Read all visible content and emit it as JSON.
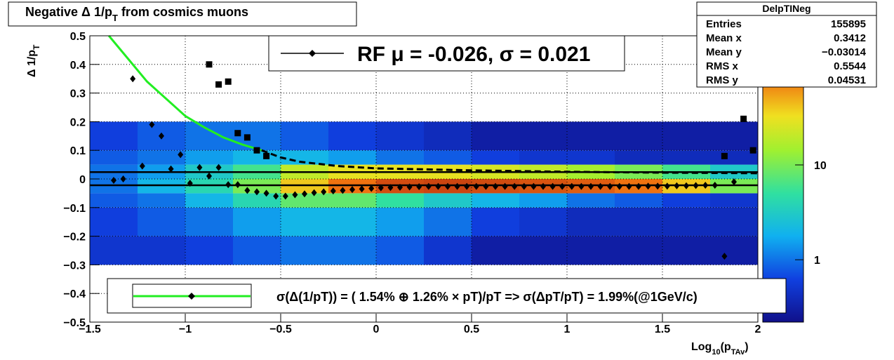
{
  "chart_data": {
    "type": "hist2d",
    "title": [
      "Negative Δ 1/p",
      "T",
      " from cosmics muons"
    ],
    "ylabel": [
      "Δ 1/p",
      "T"
    ],
    "xlabel": [
      "Log",
      "10",
      "(p",
      "TAv",
      ")"
    ],
    "xlim": [
      -1.5,
      2
    ],
    "ylim": [
      -0.5,
      0.5
    ],
    "xticks": [
      {
        "value": -1.5,
        "label": "−1.5"
      },
      {
        "value": -1,
        "label": "−1"
      },
      {
        "value": -0.5,
        "label": "−0.5"
      },
      0,
      0.5,
      1,
      1.5,
      2
    ],
    "yticks": [
      {
        "value": -0.5,
        "label": "−0.5"
      },
      {
        "value": -0.4,
        "label": "−0.4"
      },
      {
        "value": -0.3,
        "label": "−0.3"
      },
      {
        "value": -0.2,
        "label": "−0.2"
      },
      {
        "value": -0.1,
        "label": "−0.1"
      },
      0,
      0.1,
      0.2,
      0.3,
      0.4,
      0.5
    ],
    "grid": true,
    "zlim": [
      0.22,
      230
    ],
    "zticks": [
      1,
      10
    ],
    "zlog": true,
    "heatmap": {
      "xbins": [
        -1.5,
        -1.25,
        -1,
        -0.75,
        -0.5,
        -0.25,
        0,
        0.25,
        0.5,
        0.75,
        1,
        1.25,
        1.5,
        1.75,
        2
      ],
      "ybins": [
        -0.3,
        -0.2,
        -0.1,
        -0.05,
        0,
        0.05,
        0.1,
        0.2
      ],
      "z": [
        [
          0.5,
          0.5,
          0.6,
          0.8,
          1,
          1,
          0.8,
          0.5,
          0.3,
          0.3,
          0.3,
          0.3,
          0.3,
          0.3
        ],
        [
          0.6,
          0.8,
          1,
          1.5,
          2,
          2,
          1.5,
          1,
          0.6,
          0.5,
          0.4,
          0.4,
          0.4,
          0.4
        ],
        [
          0.8,
          1,
          2,
          4,
          8,
          8,
          5,
          3,
          2,
          1.5,
          1,
          0.8,
          0.6,
          0.5
        ],
        [
          1,
          2,
          4,
          10,
          40,
          80,
          120,
          130,
          120,
          110,
          100,
          80,
          40,
          10
        ],
        [
          1,
          1.5,
          3,
          6,
          20,
          30,
          30,
          30,
          25,
          20,
          15,
          10,
          6,
          3
        ],
        [
          0.8,
          1,
          1.5,
          2,
          2,
          1.5,
          1,
          0.8,
          0.6,
          0.5,
          0.5,
          0.4,
          0.4,
          0.4
        ],
        [
          0.6,
          0.8,
          1,
          1,
          0.8,
          0.6,
          0.5,
          0.4,
          0.3,
          0.3,
          0.3,
          0.3,
          0.3,
          0.3
        ]
      ]
    },
    "hlines": [
      0.024,
      -0.022
    ],
    "series": [
      {
        "name": "mean",
        "marker": "diamond",
        "color": "#000000",
        "x": [
          -1.375,
          -1.325,
          -1.275,
          -1.225,
          -1.175,
          -1.125,
          -1.075,
          -1.025,
          -0.975,
          -0.925,
          -0.875,
          -0.825,
          -0.775,
          -0.725,
          -0.675,
          -0.625,
          -0.575,
          -0.525,
          -0.475,
          -0.425,
          -0.375,
          -0.325,
          -0.275,
          -0.225,
          -0.175,
          -0.125,
          -0.075,
          -0.025,
          0.025,
          0.075,
          0.125,
          0.175,
          0.225,
          0.275,
          0.325,
          0.375,
          0.425,
          0.475,
          0.525,
          0.575,
          0.625,
          0.675,
          0.725,
          0.775,
          0.825,
          0.875,
          0.925,
          0.975,
          1.025,
          1.075,
          1.125,
          1.175,
          1.225,
          1.275,
          1.325,
          1.375,
          1.425,
          1.475,
          1.525,
          1.575,
          1.625,
          1.675,
          1.725,
          1.775,
          1.825,
          1.875
        ],
        "values": [
          -0.005,
          0,
          0.35,
          0.045,
          0.19,
          0.15,
          0.035,
          0.085,
          -0.015,
          0.04,
          0.01,
          0.04,
          -0.02,
          -0.02,
          -0.04,
          -0.045,
          -0.05,
          -0.06,
          -0.06,
          -0.055,
          -0.052,
          -0.048,
          -0.045,
          -0.042,
          -0.04,
          -0.037,
          -0.035,
          -0.033,
          -0.031,
          -0.03,
          -0.029,
          -0.028,
          -0.027,
          -0.026,
          -0.026,
          -0.026,
          -0.026,
          -0.026,
          -0.026,
          -0.026,
          -0.026,
          -0.026,
          -0.026,
          -0.026,
          -0.026,
          -0.026,
          -0.026,
          -0.026,
          -0.026,
          -0.026,
          -0.026,
          -0.026,
          -0.026,
          -0.026,
          -0.026,
          -0.026,
          -0.025,
          -0.025,
          -0.025,
          -0.024,
          -0.024,
          -0.023,
          -0.022,
          -0.022,
          -0.27,
          -0.01
        ]
      },
      {
        "name": "rms",
        "marker": "square",
        "color": "#000000",
        "x": [
          -0.875,
          -0.825,
          -0.775,
          -0.725,
          -0.675,
          -0.625,
          -0.575,
          1.825,
          1.925,
          1.975
        ],
        "values": [
          0.4,
          0.33,
          0.34,
          0.16,
          0.145,
          0.1,
          0.08,
          0.08,
          0.21,
          0.1
        ]
      },
      {
        "name": "fit",
        "marker": "line",
        "color": "#22ee22",
        "x": [
          -1.4,
          -1.3,
          -1.2,
          -1.1,
          -1.0,
          -0.9,
          -0.8,
          -0.7,
          -0.6
        ],
        "values": [
          0.5,
          0.42,
          0.34,
          0.28,
          0.22,
          0.18,
          0.145,
          0.12,
          0.1
        ]
      },
      {
        "name": "fit-extrapolation",
        "marker": "dashed",
        "color": "#000000",
        "x": [
          -0.6,
          -0.5,
          -0.4,
          -0.2,
          0,
          0.5,
          1,
          1.5,
          2
        ],
        "values": [
          0.1,
          0.075,
          0.06,
          0.045,
          0.037,
          0.03,
          0.025,
          0.022,
          0.02
        ]
      }
    ],
    "legend_top": "RF μ = -0.026, σ =   0.021",
    "legend_bottom": "σ(Δ(1/pT)) = ( 1.54% ⊕  1.26% × pT)/pT => σ(ΔpT/pT) =  1.99%(@1GeV/c)",
    "stats": {
      "title": "DelpTINeg",
      "rows": [
        {
          "label": "Entries",
          "value": 155895
        },
        {
          "label": "Mean x",
          "value": 0.3412
        },
        {
          "label": "Mean y",
          "value": "−0.03014"
        },
        {
          "label": "RMS x",
          "value": 0.5544
        },
        {
          "label": "RMS y",
          "value": 0.04531
        }
      ]
    }
  }
}
